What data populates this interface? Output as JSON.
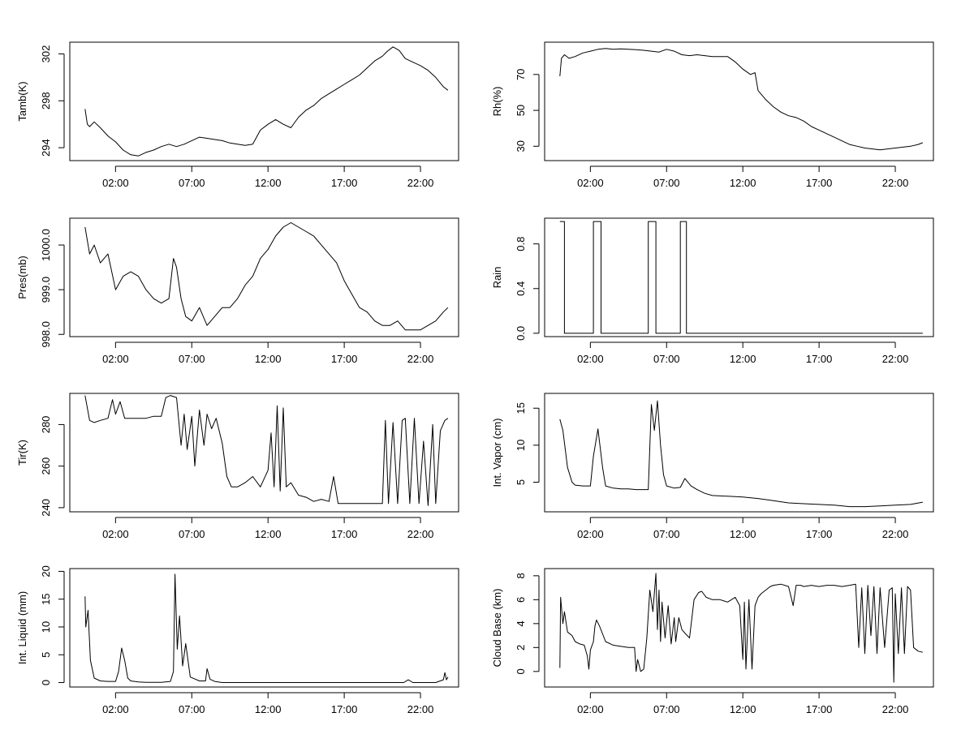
{
  "chart_data": [
    {
      "type": "line",
      "ylabel": "Tamb(K)",
      "xlabel": "",
      "x_ticks": [
        "02:00",
        "07:00",
        "12:00",
        "17:00",
        "22:00"
      ],
      "y_ticks": [
        "294",
        "298",
        "302"
      ],
      "xlim": [
        -1.0,
        24.5
      ],
      "ylim": [
        292.9,
        303.0
      ],
      "grid": false,
      "series": [
        {
          "x": [
            0.0,
            0.15,
            0.3,
            0.6,
            1.0,
            1.5,
            2.0,
            2.5,
            3.0,
            3.5,
            4.0,
            4.5,
            5.0,
            5.5,
            6.0,
            6.5,
            7.0,
            7.5,
            8.0,
            8.5,
            9.0,
            9.5,
            10.0,
            10.5,
            11.0,
            11.5,
            12.0,
            12.5,
            13.0,
            13.5,
            14.0,
            14.5,
            15.0,
            15.5,
            16.0,
            16.5,
            17.0,
            17.5,
            18.0,
            18.5,
            19.0,
            19.5,
            19.8,
            20.2,
            20.6,
            21.0,
            21.5,
            22.0,
            22.5,
            23.0,
            23.5,
            23.8
          ],
          "y": [
            297.3,
            296.0,
            295.8,
            296.2,
            295.7,
            295.0,
            294.5,
            293.8,
            293.4,
            293.3,
            293.6,
            293.8,
            294.1,
            294.3,
            294.1,
            294.3,
            294.6,
            294.9,
            294.8,
            294.7,
            294.6,
            294.4,
            294.3,
            294.2,
            294.3,
            295.5,
            296.0,
            296.4,
            296.0,
            295.7,
            296.6,
            297.2,
            297.6,
            298.2,
            298.6,
            299.0,
            299.4,
            299.8,
            300.2,
            300.8,
            301.4,
            301.8,
            302.2,
            302.6,
            302.3,
            301.6,
            301.3,
            301.0,
            300.6,
            300.0,
            299.2,
            298.9
          ]
        }
      ]
    },
    {
      "type": "line",
      "ylabel": "Rh(%)",
      "xlabel": "",
      "x_ticks": [
        "02:00",
        "07:00",
        "12:00",
        "17:00",
        "22:00"
      ],
      "y_ticks": [
        "30",
        "50",
        "70"
      ],
      "xlim": [
        -1.0,
        24.5
      ],
      "ylim": [
        22,
        88
      ],
      "grid": false,
      "series": [
        {
          "x": [
            0.0,
            0.1,
            0.3,
            0.6,
            1.0,
            1.5,
            2.0,
            2.5,
            3.0,
            3.5,
            4.0,
            4.5,
            5.0,
            5.5,
            6.0,
            6.5,
            7.0,
            7.5,
            8.0,
            8.5,
            9.0,
            9.5,
            10.0,
            10.5,
            11.0,
            11.5,
            12.0,
            12.5,
            12.8,
            13.0,
            13.5,
            14.0,
            14.5,
            15.0,
            15.5,
            16.0,
            16.5,
            17.0,
            17.5,
            18.0,
            18.5,
            19.0,
            19.5,
            20.0,
            20.5,
            21.0,
            21.5,
            22.0,
            22.5,
            23.0,
            23.5,
            23.8
          ],
          "y": [
            69,
            79,
            81,
            79,
            80,
            82,
            83,
            84,
            84.5,
            84,
            84.3,
            84,
            83.8,
            83.5,
            83,
            82.5,
            84,
            83,
            81,
            80.5,
            81,
            80.5,
            80,
            80,
            80,
            77,
            73,
            70,
            71,
            61,
            56,
            52,
            49,
            47,
            46,
            44,
            41,
            39,
            37,
            35,
            33,
            31,
            30,
            29,
            28.5,
            28,
            28.5,
            29,
            29.5,
            30,
            31,
            32
          ]
        }
      ]
    },
    {
      "type": "line",
      "ylabel": "Pres(mb)",
      "xlabel": "",
      "x_ticks": [
        "02:00",
        "07:00",
        "12:00",
        "17:00",
        "22:00"
      ],
      "y_ticks": [
        "998.0",
        "999.0",
        "1000.0"
      ],
      "xlim": [
        -1.0,
        24.5
      ],
      "ylim": [
        997.95,
        1000.6
      ],
      "grid": false,
      "series": [
        {
          "x": [
            0.0,
            0.3,
            0.6,
            1.0,
            1.5,
            2.0,
            2.5,
            3.0,
            3.5,
            4.0,
            4.5,
            5.0,
            5.5,
            5.8,
            6.0,
            6.3,
            6.6,
            7.0,
            7.5,
            8.0,
            8.5,
            9.0,
            9.5,
            10.0,
            10.5,
            11.0,
            11.5,
            12.0,
            12.5,
            13.0,
            13.5,
            14.0,
            14.5,
            15.0,
            15.5,
            16.0,
            16.5,
            17.0,
            17.5,
            18.0,
            18.5,
            19.0,
            19.5,
            20.0,
            20.5,
            21.0,
            21.5,
            22.0,
            22.5,
            23.0,
            23.5,
            23.8
          ],
          "y": [
            1000.4,
            999.8,
            1000.0,
            999.6,
            999.8,
            999.0,
            999.3,
            999.4,
            999.3,
            999.0,
            998.8,
            998.7,
            998.8,
            999.7,
            999.5,
            998.8,
            998.4,
            998.3,
            998.6,
            998.2,
            998.4,
            998.6,
            998.6,
            998.8,
            999.1,
            999.3,
            999.7,
            999.9,
            1000.2,
            1000.4,
            1000.5,
            1000.4,
            1000.3,
            1000.2,
            1000.0,
            999.8,
            999.6,
            999.2,
            998.9,
            998.6,
            998.5,
            998.3,
            998.2,
            998.2,
            998.3,
            998.1,
            998.1,
            998.1,
            998.2,
            998.3,
            998.5,
            998.6
          ]
        }
      ]
    },
    {
      "type": "line",
      "ylabel": "Rain",
      "xlabel": "",
      "x_ticks": [
        "02:00",
        "07:00",
        "12:00",
        "17:00",
        "22:00"
      ],
      "y_ticks": [
        "0.0",
        "0.4",
        "0.8"
      ],
      "xlim": [
        -1.0,
        24.5
      ],
      "ylim": [
        -0.03,
        1.03
      ],
      "grid": false,
      "series": [
        {
          "x": [
            0.0,
            0.3,
            0.3,
            2.2,
            2.2,
            2.7,
            2.7,
            5.8,
            5.8,
            6.3,
            6.3,
            7.9,
            7.9,
            8.3,
            8.3,
            23.8
          ],
          "y": [
            1,
            1,
            0,
            0,
            1,
            1,
            0,
            0,
            1,
            1,
            0,
            0,
            1,
            1,
            0,
            0
          ]
        }
      ]
    },
    {
      "type": "line",
      "ylabel": "Tir(K)",
      "xlabel": "",
      "x_ticks": [
        "02:00",
        "07:00",
        "12:00",
        "17:00",
        "22:00"
      ],
      "y_ticks": [
        "240",
        "260",
        "280"
      ],
      "xlim": [
        -1.0,
        24.5
      ],
      "ylim": [
        238,
        295
      ],
      "grid": false,
      "series": [
        {
          "x": [
            0.0,
            0.3,
            0.6,
            1.0,
            1.5,
            1.8,
            2.0,
            2.3,
            2.6,
            3.0,
            3.5,
            4.0,
            4.5,
            5.0,
            5.3,
            5.6,
            6.0,
            6.3,
            6.5,
            6.7,
            7.0,
            7.2,
            7.5,
            7.8,
            8.0,
            8.3,
            8.6,
            9.0,
            9.3,
            9.6,
            10.0,
            10.5,
            11.0,
            11.5,
            12.0,
            12.2,
            12.4,
            12.6,
            12.8,
            13.0,
            13.2,
            13.5,
            14.0,
            14.5,
            15.0,
            15.5,
            16.0,
            16.3,
            16.6,
            17.0,
            18.0,
            19.0,
            19.5,
            19.7,
            19.9,
            20.2,
            20.5,
            20.8,
            21.0,
            21.3,
            21.6,
            21.9,
            22.2,
            22.5,
            22.8,
            23.0,
            23.3,
            23.6,
            23.8
          ],
          "y": [
            294,
            282,
            281,
            282,
            283,
            292,
            285,
            291,
            283,
            283,
            283,
            283,
            284,
            284,
            293,
            294,
            293,
            270,
            285,
            268,
            284,
            260,
            287,
            270,
            285,
            278,
            283,
            271,
            255,
            250,
            250,
            252,
            255,
            250,
            258,
            276,
            250,
            289,
            248,
            288,
            250,
            252,
            246,
            245,
            243,
            244,
            243,
            255,
            242,
            242,
            242,
            242,
            242,
            282,
            242,
            281,
            242,
            282,
            283,
            242,
            283,
            242,
            272,
            241,
            280,
            242,
            277,
            282,
            283
          ]
        }
      ]
    },
    {
      "type": "line",
      "ylabel": "Int. Vapor (cm)",
      "xlabel": "",
      "x_ticks": [
        "02:00",
        "07:00",
        "12:00",
        "17:00",
        "22:00"
      ],
      "y_ticks": [
        "5",
        "10",
        "15"
      ],
      "xlim": [
        -1.0,
        24.5
      ],
      "ylim": [
        1.0,
        17.0
      ],
      "grid": false,
      "series": [
        {
          "x": [
            0.0,
            0.2,
            0.5,
            0.8,
            1.0,
            1.5,
            2.0,
            2.2,
            2.5,
            2.8,
            3.0,
            3.5,
            4.0,
            4.5,
            5.0,
            5.5,
            5.8,
            6.0,
            6.2,
            6.4,
            6.6,
            6.8,
            7.0,
            7.5,
            7.9,
            8.2,
            8.6,
            9.0,
            9.5,
            10.0,
            11.0,
            12.0,
            13.0,
            14.0,
            15.0,
            16.0,
            17.0,
            18.0,
            19.0,
            20.0,
            21.0,
            22.0,
            23.0,
            23.8
          ],
          "y": [
            13.5,
            12.0,
            7.0,
            5.0,
            4.6,
            4.5,
            4.5,
            8.5,
            12.2,
            7.0,
            4.5,
            4.2,
            4.1,
            4.1,
            4.0,
            4.0,
            4.0,
            15.5,
            12.0,
            16.0,
            10.0,
            6.0,
            4.5,
            4.2,
            4.3,
            5.5,
            4.5,
            4.0,
            3.5,
            3.2,
            3.1,
            3.0,
            2.8,
            2.5,
            2.2,
            2.1,
            2.0,
            1.9,
            1.7,
            1.7,
            1.8,
            1.9,
            2.0,
            2.3
          ]
        }
      ]
    },
    {
      "type": "line",
      "ylabel": "Int. Liquid (mm)",
      "xlabel": "",
      "x_ticks": [
        "02:00",
        "07:00",
        "12:00",
        "17:00",
        "22:00"
      ],
      "y_ticks": [
        "0",
        "5",
        "10",
        "15",
        "20"
      ],
      "xlim": [
        -1.0,
        24.5
      ],
      "ylim": [
        -0.8,
        20.5
      ],
      "grid": false,
      "series": [
        {
          "x": [
            0.0,
            0.05,
            0.2,
            0.35,
            0.6,
            1.0,
            1.5,
            2.0,
            2.2,
            2.4,
            2.6,
            2.8,
            3.0,
            3.5,
            4.0,
            5.0,
            5.6,
            5.8,
            5.9,
            6.05,
            6.2,
            6.4,
            6.6,
            6.9,
            7.5,
            7.9,
            8.0,
            8.2,
            8.5,
            9.0,
            10.0,
            12.0,
            15.0,
            20.0,
            20.9,
            21.2,
            21.5,
            23.0,
            23.5,
            23.6,
            23.7,
            23.8
          ],
          "y": [
            15.5,
            10.0,
            13.0,
            4.0,
            0.8,
            0.3,
            0.2,
            0.2,
            2.0,
            6.2,
            4.0,
            0.8,
            0.3,
            0.1,
            0.05,
            0.05,
            0.2,
            2.0,
            19.5,
            6.0,
            12.0,
            3.0,
            7.0,
            1.0,
            0.3,
            0.3,
            2.5,
            0.6,
            0.2,
            0.0,
            0.0,
            0.0,
            0.0,
            0.0,
            0.0,
            0.5,
            0.0,
            0.0,
            0.5,
            1.8,
            0.5,
            1.0
          ]
        }
      ]
    },
    {
      "type": "line",
      "ylabel": "Cloud Base (km)",
      "xlabel": "",
      "x_ticks": [
        "02:00",
        "07:00",
        "12:00",
        "17:00",
        "22:00"
      ],
      "y_ticks": [
        "0",
        "2",
        "4",
        "6",
        "8"
      ],
      "xlim": [
        -1.0,
        24.5
      ],
      "ylim": [
        -1.3,
        8.6
      ],
      "grid": false,
      "series": [
        {
          "x": [
            0.0,
            0.05,
            0.2,
            0.3,
            0.5,
            0.8,
            1.0,
            1.3,
            1.6,
            1.8,
            1.9,
            2.0,
            2.2,
            2.3,
            2.4,
            2.6,
            3.0,
            3.5,
            4.0,
            4.5,
            4.9,
            5.0,
            5.1,
            5.3,
            5.5,
            5.7,
            5.9,
            6.1,
            6.3,
            6.4,
            6.5,
            6.6,
            6.7,
            6.9,
            7.1,
            7.3,
            7.5,
            7.6,
            7.8,
            8.0,
            8.2,
            8.5,
            8.8,
            9.1,
            9.3,
            9.6,
            10.0,
            10.5,
            11.0,
            11.5,
            11.8,
            12.0,
            12.1,
            12.2,
            12.4,
            12.6,
            12.8,
            13.0,
            13.2,
            13.5,
            13.8,
            14.0,
            14.5,
            15.0,
            15.3,
            15.5,
            15.8,
            16.0,
            16.5,
            17.0,
            17.5,
            18.0,
            18.5,
            19.0,
            19.4,
            19.6,
            19.8,
            20.0,
            20.2,
            20.4,
            20.6,
            20.8,
            21.0,
            21.3,
            21.6,
            21.8,
            21.9,
            22.0,
            22.2,
            22.4,
            22.6,
            22.8,
            23.0,
            23.2,
            23.5,
            23.8
          ],
          "y": [
            0.3,
            6.2,
            4.0,
            5.0,
            3.3,
            3.0,
            2.5,
            2.3,
            2.2,
            1.3,
            0.2,
            1.8,
            2.5,
            3.8,
            4.3,
            3.8,
            2.5,
            2.2,
            2.1,
            2.0,
            2.0,
            0.0,
            1.0,
            0.0,
            0.2,
            2.8,
            6.8,
            5.0,
            8.2,
            3.5,
            6.8,
            2.5,
            5.8,
            2.8,
            5.5,
            2.3,
            4.5,
            2.5,
            4.5,
            3.5,
            3.2,
            2.8,
            6.0,
            6.6,
            6.7,
            6.2,
            6.0,
            6.0,
            5.8,
            6.2,
            5.5,
            1.0,
            5.8,
            0.2,
            6.0,
            0.2,
            5.5,
            6.2,
            6.5,
            6.8,
            7.1,
            7.2,
            7.3,
            7.1,
            5.5,
            7.2,
            7.2,
            7.1,
            7.2,
            7.1,
            7.2,
            7.2,
            7.1,
            7.2,
            7.3,
            2.0,
            7.0,
            1.5,
            7.2,
            3.0,
            7.1,
            1.5,
            7.0,
            2.0,
            6.8,
            7.0,
            -0.9,
            6.5,
            1.5,
            7.0,
            1.5,
            7.1,
            6.8,
            2.0,
            1.7,
            1.6
          ]
        }
      ]
    }
  ]
}
